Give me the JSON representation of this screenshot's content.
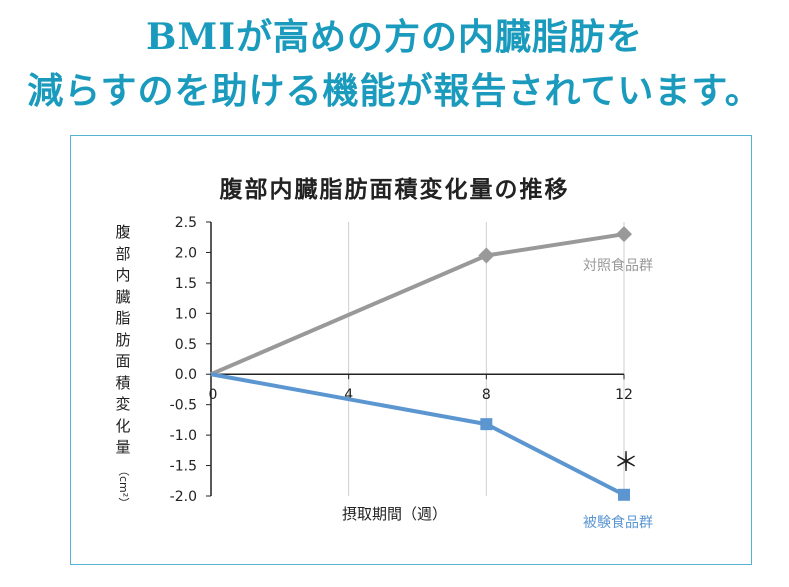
{
  "headline": {
    "line1": "BMIが高めの方の内臓脂肪を",
    "line2": "減らすのを助ける機能が報告されています。"
  },
  "colors": {
    "headline": "#1a9bbd",
    "frame": "#56b4d3",
    "control": "#999999",
    "test": "#5b96d1",
    "axis": "#222222"
  },
  "chart_data": {
    "type": "line",
    "title": "腹部内臓脂肪面積変化量の推移",
    "xlabel": "摂取期間（週）",
    "ylabel": "腹部内臓脂肪面積変化量",
    "ylabel_unit": "（cm²）",
    "x_ticks": [
      "0",
      "4",
      "8",
      "12"
    ],
    "y_ticks": [
      "2.5",
      "2.0",
      "1.5",
      "1.0",
      "0.5",
      "0.0",
      "-0.5",
      "-1.0",
      "-1.5",
      "-2.0"
    ],
    "xlim": [
      0,
      12
    ],
    "ylim": [
      -2.0,
      2.5
    ],
    "series": [
      {
        "name": "対照食品群",
        "marker": "diamond",
        "color": "#999999",
        "points": [
          [
            0,
            0.0
          ],
          [
            8,
            1.95
          ],
          [
            12,
            2.3
          ]
        ]
      },
      {
        "name": "被験食品群",
        "marker": "square",
        "color": "#5b96d1",
        "points": [
          [
            0,
            0.0
          ],
          [
            8,
            -0.82
          ],
          [
            12,
            -1.98
          ]
        ]
      }
    ],
    "annotation": "＊"
  }
}
